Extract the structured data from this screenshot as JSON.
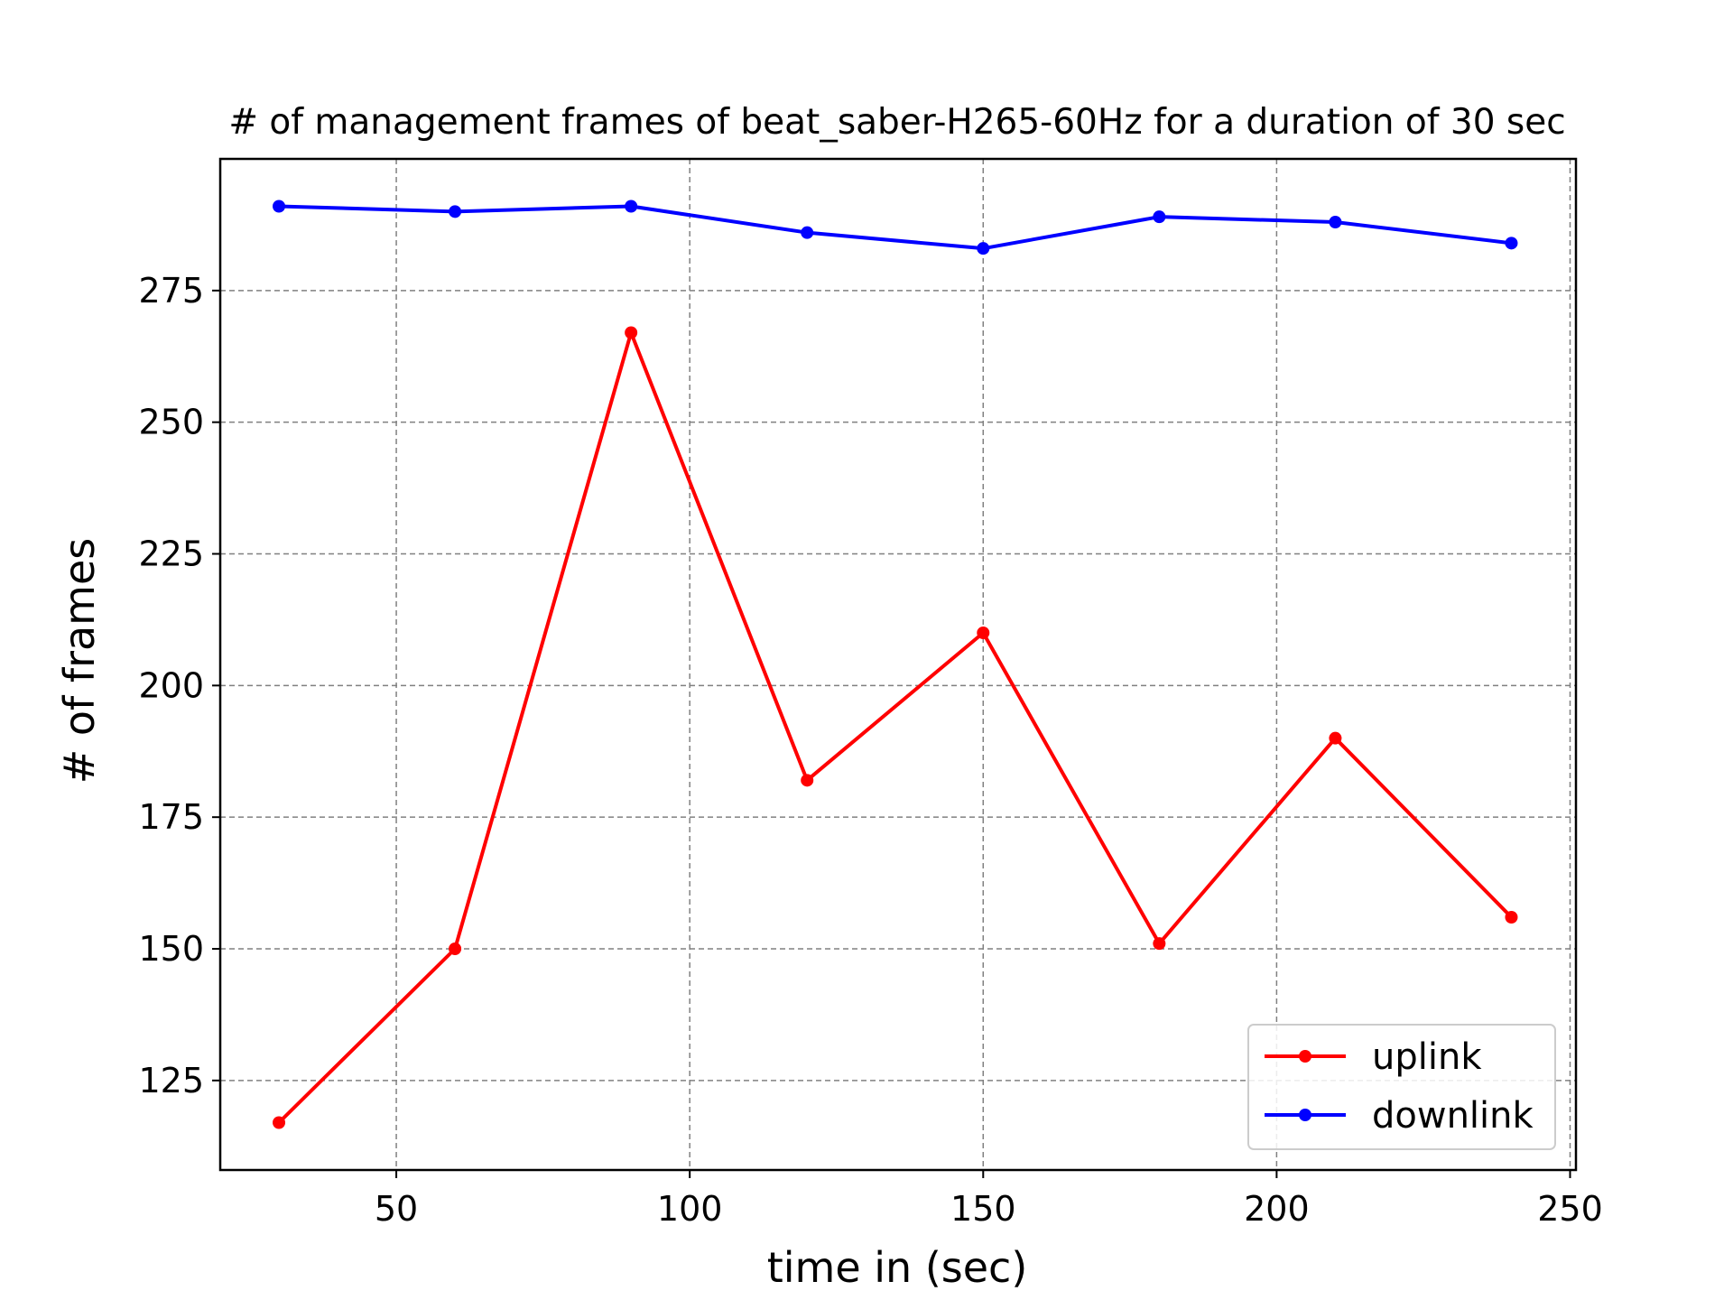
{
  "chart_data": {
    "type": "line",
    "title": "# of management frames of beat_saber-H265-60Hz for a duration of 30 sec",
    "xlabel": "time in (sec)",
    "ylabel": "# of frames",
    "x": [
      30,
      60,
      90,
      120,
      150,
      180,
      210,
      240
    ],
    "xlim": [
      20,
      251
    ],
    "ylim": [
      108,
      300
    ],
    "xticks": [
      50,
      100,
      150,
      200,
      250
    ],
    "yticks": [
      125,
      150,
      175,
      200,
      225,
      250,
      275
    ],
    "grid": true,
    "legend_position": "lower right",
    "series": [
      {
        "name": "uplink",
        "color": "#ff0000",
        "values": [
          117,
          150,
          267,
          182,
          210,
          151,
          190,
          156
        ]
      },
      {
        "name": "downlink",
        "color": "#0000ff",
        "values": [
          291,
          290,
          291,
          286,
          283,
          289,
          288,
          284
        ]
      }
    ]
  }
}
